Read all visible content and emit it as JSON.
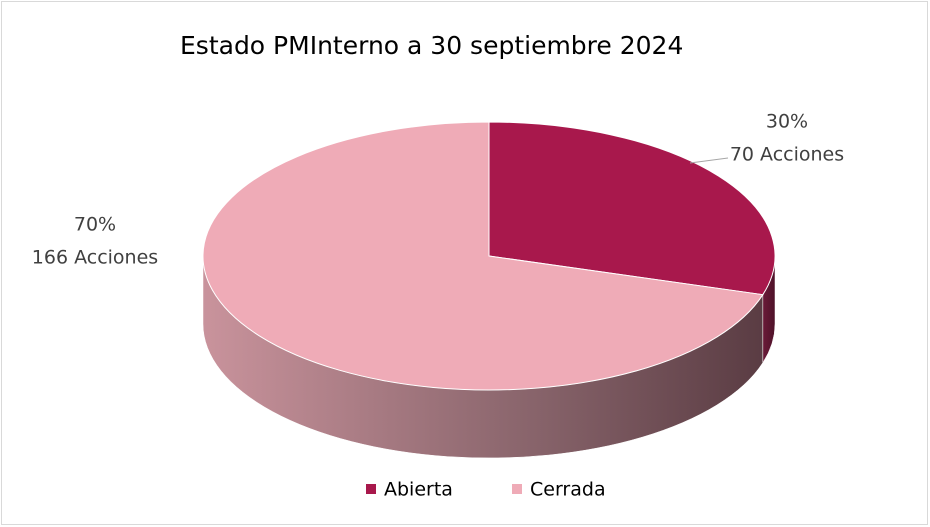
{
  "chart_data": {
    "type": "pie3d",
    "title": "Estado PMInterno a 30 septiembre 2024",
    "categories": [
      "Abierta",
      "Cerrada"
    ],
    "values": [
      70,
      166
    ],
    "value_labels": [
      "70 Acciones",
      "166 Acciones"
    ],
    "percent_labels": [
      "30%",
      "70%"
    ],
    "colors": [
      "#a8184c",
      "#efabb7"
    ],
    "legend": "bottom"
  }
}
